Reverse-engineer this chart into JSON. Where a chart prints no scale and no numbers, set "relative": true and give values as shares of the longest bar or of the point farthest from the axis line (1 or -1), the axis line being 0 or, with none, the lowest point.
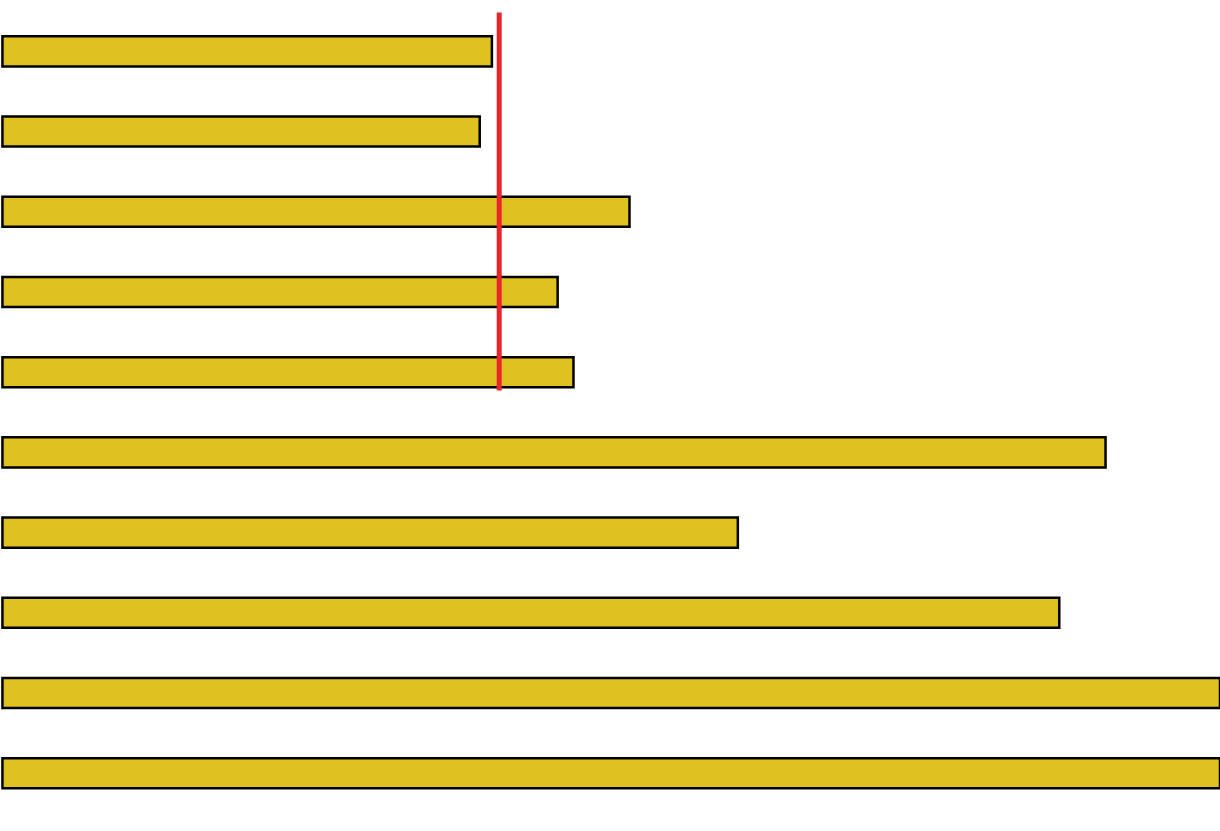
{
  "chart_data": {
    "type": "bar",
    "orientation": "horizontal",
    "relative": true,
    "categories": [
      null,
      null,
      null,
      null,
      null,
      null,
      null,
      null,
      null,
      null
    ],
    "values": [
      0.402,
      0.392,
      0.515,
      0.456,
      0.469,
      0.906,
      0.604,
      0.868,
      1,
      1
    ],
    "color": "#dfc11f",
    "ref_lines": [
      {
        "axis": "x",
        "value": 0.408,
        "color": "#e8252a"
      }
    ]
  }
}
